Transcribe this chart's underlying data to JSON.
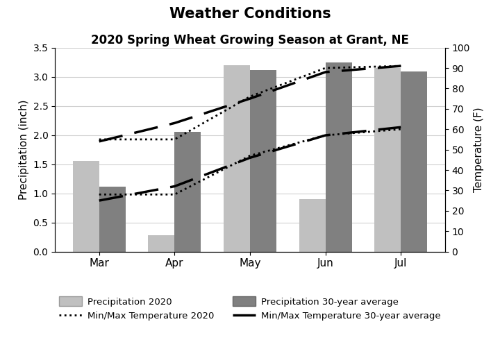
{
  "title": "Weather Conditions",
  "subtitle": "2020 Spring Wheat Growing Season at Grant, NE",
  "months": [
    "Mar",
    "Apr",
    "May",
    "Jun",
    "Jul"
  ],
  "precip_2020": [
    1.55,
    0.28,
    3.2,
    0.9,
    3.15
  ],
  "precip_30yr": [
    1.12,
    2.05,
    3.12,
    3.25,
    3.09
  ],
  "tmax_2020": [
    55,
    55,
    76,
    90,
    91
  ],
  "tmin_2020": [
    28,
    28,
    47,
    57,
    60
  ],
  "tmax_30yr": [
    54,
    63,
    75,
    88,
    91
  ],
  "tmin_30yr": [
    25,
    32,
    46,
    57,
    61
  ],
  "precip_2020_color": "#c0c0c0",
  "precip_30yr_color": "#808080",
  "ylim_left": [
    0,
    3.5
  ],
  "ylim_right": [
    0,
    100
  ],
  "yticks_left": [
    0.0,
    0.5,
    1.0,
    1.5,
    2.0,
    2.5,
    3.0,
    3.5
  ],
  "yticks_right": [
    0,
    10,
    20,
    30,
    40,
    50,
    60,
    70,
    80,
    90,
    100
  ],
  "background_color": "#ffffff",
  "title_fontsize": 15,
  "subtitle_fontsize": 12,
  "bar_width": 0.35
}
